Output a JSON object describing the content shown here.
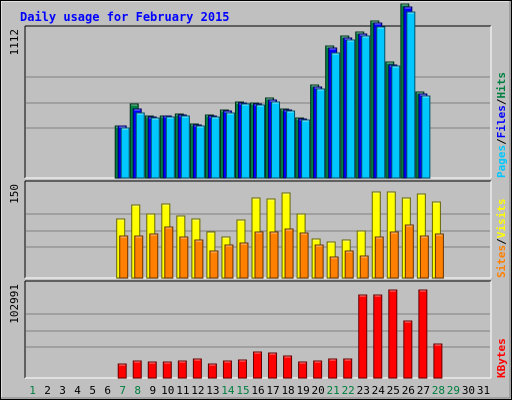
{
  "chart_data": {
    "type": "bar",
    "title": "Daily usage for February 2015",
    "days": [
      "1",
      "2",
      "3",
      "4",
      "5",
      "6",
      "7",
      "8",
      "9",
      "10",
      "11",
      "12",
      "13",
      "14",
      "15",
      "16",
      "17",
      "18",
      "19",
      "20",
      "21",
      "22",
      "23",
      "24",
      "25",
      "26",
      "27",
      "28",
      "29",
      "30",
      "31"
    ],
    "weekend_days": [
      "1",
      "7",
      "8",
      "14",
      "15",
      "21",
      "22",
      "28",
      "29"
    ],
    "panels": [
      {
        "id": "pages",
        "ymax_label": "1112",
        "ymax": 1112,
        "legend": [
          {
            "text": "Pages",
            "color": "#00c8ff"
          },
          {
            "text": "/",
            "color": "#000000"
          },
          {
            "text": "Files",
            "color": "#0000ff"
          },
          {
            "text": "/",
            "color": "#000000"
          },
          {
            "text": "Hits",
            "color": "#008040"
          }
        ],
        "series": [
          {
            "name": "Hits",
            "color": "#008040",
            "values": [
              null,
              null,
              null,
              null,
              null,
              null,
              399,
              563,
              471,
              476,
              489,
              408,
              479,
              517,
              582,
              570,
              611,
              525,
              456,
              706,
              1003,
              1082,
              1112,
              1199,
              881,
              1324,
              655,
              null,
              null,
              null,
              null
            ]
          },
          {
            "name": "Files",
            "color": "#0000ff",
            "values": [
              null,
              null,
              null,
              null,
              null,
              null,
              394,
              529,
              464,
              472,
              480,
              404,
              472,
              507,
              573,
              561,
              594,
              515,
              449,
              691,
              987,
              1066,
              1096,
              1177,
              862,
              1300,
              640,
              null,
              null,
              null,
              null
            ]
          },
          {
            "name": "Pages",
            "color": "#00c8ff",
            "values": [
              null,
              null,
              null,
              null,
              null,
              null,
              382,
              495,
              455,
              464,
              476,
              398,
              465,
              496,
              566,
              553,
              579,
              507,
              439,
              680,
              953,
              1049,
              1079,
              1149,
              851,
              1266,
              625,
              null,
              null,
              null,
              null
            ]
          }
        ]
      },
      {
        "id": "visits",
        "ymax_label": "150",
        "ymax": 150,
        "legend": [
          {
            "text": "Sites",
            "color": "#ff8000"
          },
          {
            "text": "/",
            "color": "#000000"
          },
          {
            "text": "Visits",
            "color": "#ffff00"
          }
        ],
        "series": [
          {
            "name": "Visits",
            "color": "#ffff00",
            "values": [
              null,
              null,
              null,
              null,
              null,
              null,
              97,
              120,
              105,
              122,
              102,
              98,
              76,
              68,
              95,
              132,
              130,
              140,
              105,
              65,
              60,
              62,
              78,
              142,
              142,
              132,
              138,
              125,
              null,
              null,
              null
            ]
          },
          {
            "name": "Sites",
            "color": "#ff8000",
            "values": [
              null,
              null,
              null,
              null,
              null,
              null,
              70,
              70,
              72,
              84,
              68,
              63,
              44,
              55,
              58,
              76,
              76,
              80,
              74,
              55,
              35,
              44,
              36,
              68,
              76,
              87,
              70,
              73,
              null,
              null,
              null
            ]
          }
        ]
      },
      {
        "id": "kbytes",
        "ymax_label": "102991",
        "ymax": 102991,
        "legend": [
          {
            "text": "KBytes",
            "color": "#ff0000"
          }
        ],
        "series": [
          {
            "name": "KBytes",
            "color": "#ff0000",
            "values": [
              null,
              null,
              null,
              null,
              null,
              null,
              16000,
              19200,
              18000,
              18000,
              19500,
              21600,
              15800,
              19000,
              20400,
              29800,
              28100,
              24600,
              18400,
              19300,
              21000,
              21900,
              93800,
              93800,
              99300,
              64400,
              99800,
              38000,
              null,
              null,
              null
            ]
          }
        ]
      }
    ]
  }
}
